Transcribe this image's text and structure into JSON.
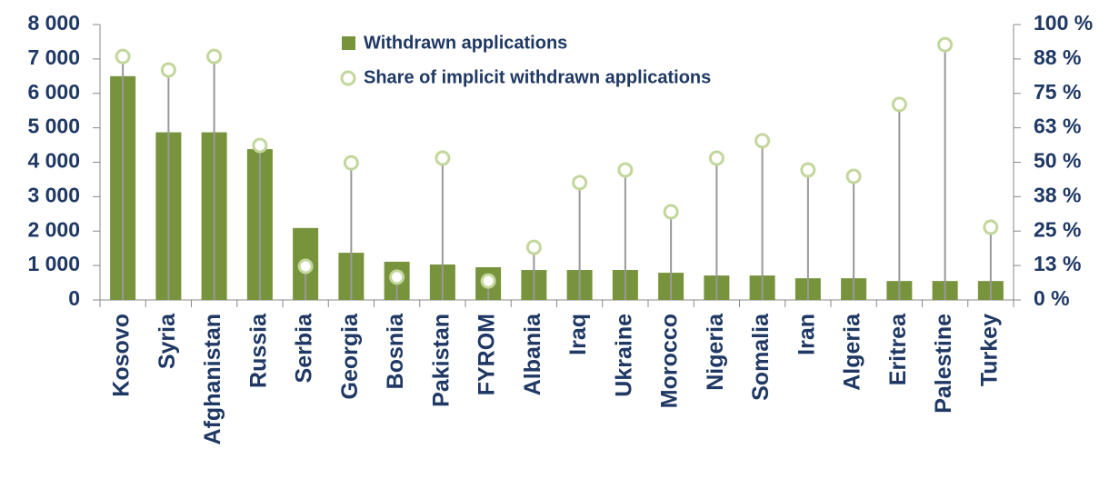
{
  "chart_data": {
    "type": "bar_lollipop",
    "categories": [
      "Kosovo",
      "Syria",
      "Afghanistan",
      "Russia",
      "Serbia",
      "Georgia",
      "Bosnia",
      "Pakistan",
      "FYROM",
      "Albania",
      "Iraq",
      "Ukraine",
      "Morocco",
      "Nigeria",
      "Somalia",
      "Iran",
      "Algeria",
      "Eritrea",
      "Palestine",
      "Turkey"
    ],
    "series": [
      {
        "name": "Withdrawn applications",
        "color": "#77933c",
        "values": [
          6500,
          4870,
          4870,
          4380,
          2090,
          1370,
          1110,
          1030,
          950,
          870,
          870,
          870,
          790,
          710,
          710,
          630,
          630,
          550,
          550,
          550
        ]
      },
      {
        "name": "Share of implicit withdrawn applications",
        "color": "#c3d69b",
        "axis": "y2",
        "values": [
          88.4,
          83.5,
          88.4,
          56.1,
          12.2,
          49.8,
          8.3,
          51.5,
          6.9,
          19.1,
          42.6,
          47.2,
          32,
          51.5,
          57.8,
          47.2,
          44.9,
          71,
          92.7,
          26.4
        ]
      }
    ],
    "ylim": [
      0,
      8000
    ],
    "yticks": [
      0,
      {
        "value": 1000,
        "label": "1 000"
      },
      {
        "value": 2000,
        "label": "2 000"
      },
      {
        "value": 3000,
        "label": "3 000"
      },
      {
        "value": 4000,
        "label": "4 000"
      },
      {
        "value": 5000,
        "label": "5 000"
      },
      {
        "value": 6000,
        "label": "6 000"
      },
      {
        "value": 7000,
        "label": "7 000"
      },
      {
        "value": 8000,
        "label": "8 000"
      }
    ],
    "y2lim": [
      0,
      100
    ],
    "y2ticks": [
      {
        "value": 0,
        "label": "0 %"
      },
      {
        "value": 12.5,
        "label": "13 %"
      },
      {
        "value": 25,
        "label": "25 %"
      },
      {
        "value": 37.5,
        "label": "38 %"
      },
      {
        "value": 50,
        "label": "50 %"
      },
      {
        "value": 62.5,
        "label": "63 %"
      },
      {
        "value": 75,
        "label": "75 %"
      },
      {
        "value": 87.5,
        "label": "88 %"
      },
      {
        "value": 100,
        "label": "100 %"
      }
    ],
    "legend": "top"
  }
}
